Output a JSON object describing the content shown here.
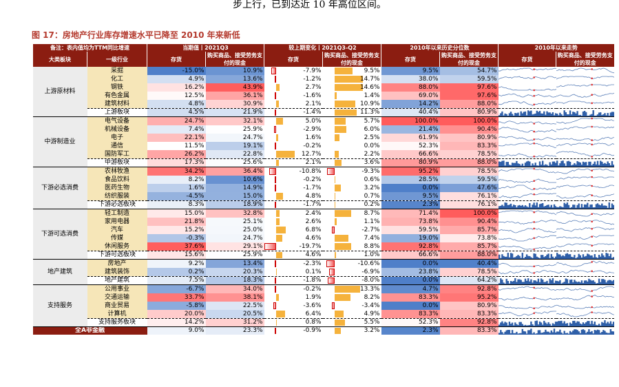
{
  "intro_text": "步上行，已到达近 10 年高位区间。",
  "figure_title": "图 17：房地产行业库存增速水平已降至 2010 年来新低",
  "header": {
    "note": "备注：表内值均为TTM同比增速",
    "current_group": "当期值丨2021Q3",
    "change_group": "较上期变化丨2021Q3-Q2",
    "pct_group": "2010年以来历史分位数",
    "trend_group": "2010年以来走势",
    "col_category": "大类板块",
    "col_industry": "一级行业",
    "col_inventory": "存货",
    "col_cash": "购买商品、接受劳务支付的现金"
  },
  "colors": {
    "header_bg": "#8b1d11",
    "red": "#f25c5c",
    "blue": "#4f7fc9",
    "gold": "#f5b23c",
    "line": "#5a7fb8"
  },
  "groups": [
    {
      "name": "上游原材料",
      "rows": [
        {
          "ind": "采掘",
          "inv": "-15.0%",
          "cash": "10.9%",
          "dinv": "-7.9%",
          "dcash": "9.5%",
          "pinv": "9.5%",
          "pcash": "54.7%"
        },
        {
          "ind": "化工",
          "inv": "4.9%",
          "cash": "13.6%",
          "dinv": "-1.2%",
          "dcash": "14.7%",
          "pinv": "38.0%",
          "pcash": "59.5%"
        },
        {
          "ind": "钢铁",
          "inv": "16.2%",
          "cash": "43.9%",
          "dinv": "2.7%",
          "dcash": "14.6%",
          "pinv": "88.0%",
          "pcash": "97.6%"
        },
        {
          "ind": "有色金属",
          "inv": "12.5%",
          "cash": "36.1%",
          "dinv": "-1.6%",
          "dcash": "1.4%",
          "pinv": "69.0%",
          "pcash": "97.6%"
        },
        {
          "ind": "建筑材料",
          "inv": "4.8%",
          "cash": "30.9%",
          "dinv": "2.1%",
          "dcash": "10.9%",
          "pinv": "14.2%",
          "pcash": "88.0%"
        }
      ],
      "sub": {
        "ind": "上游板块",
        "inv": "4.5%",
        "cash": "21.9%",
        "dinv": "-1.4%",
        "dcash": "11.3%",
        "pinv": "40.4%",
        "pcash": "80.9%"
      }
    },
    {
      "name": "中游制造业",
      "rows": [
        {
          "ind": "电气设备",
          "inv": "24.7%",
          "cash": "32.1%",
          "dinv": "5.0%",
          "dcash": "5.7%",
          "pinv": "100.0%",
          "pcash": "100.0%"
        },
        {
          "ind": "机械设备",
          "inv": "7.4%",
          "cash": "25.9%",
          "dinv": "-2.9%",
          "dcash": "6.0%",
          "pinv": "21.4%",
          "pcash": "90.4%"
        },
        {
          "ind": "电子",
          "inv": "22.1%",
          "cash": "24.7%",
          "dinv": "1.6%",
          "dcash": "2.5%",
          "pinv": "61.9%",
          "pcash": "80.9%"
        },
        {
          "ind": "通信",
          "inv": "11.5%",
          "cash": "19.1%",
          "dinv": "-0.2%",
          "dcash": "0.0%",
          "pinv": "52.3%",
          "pcash": "83.3%"
        },
        {
          "ind": "国防军工",
          "inv": "26.2%",
          "cash": "22.8%",
          "dinv": "12.7%",
          "dcash": "2.2%",
          "pinv": "66.6%",
          "pcash": "78.5%"
        }
      ],
      "sub": {
        "ind": "中游板块",
        "inv": "17.3%",
        "cash": "25.6%",
        "dinv": "2.1%",
        "dcash": "3.6%",
        "pinv": "80.9%",
        "pcash": "88.0%"
      }
    },
    {
      "name": "下游必选消费",
      "rows": [
        {
          "ind": "农林牧渔",
          "inv": "34.2%",
          "cash": "36.4%",
          "dinv": "-10.8%",
          "dcash": "-9.3%",
          "pinv": "95.2%",
          "pcash": "78.5%"
        },
        {
          "ind": "食品饮料",
          "inv": "8.2%",
          "cash": "10.6%",
          "dinv": "-0.2%",
          "dcash": "0.6%",
          "pinv": "28.5%",
          "pcash": "59.5%"
        },
        {
          "ind": "医药生物",
          "inv": "1.6%",
          "cash": "14.9%",
          "dinv": "-1.7%",
          "dcash": "3.2%",
          "pinv": "0.0%",
          "pcash": "47.6%"
        },
        {
          "ind": "纺织服装",
          "inv": "-4.5%",
          "cash": "15.0%",
          "dinv": "4.8%",
          "dcash": "0.7%",
          "pinv": "9.5%",
          "pcash": "76.1%"
        }
      ],
      "sub": {
        "ind": "下游必选板块",
        "inv": "8.3%",
        "cash": "18.9%",
        "dinv": "-1.7%",
        "dcash": "0.2%",
        "pinv": "2.3%",
        "pcash": "76.1%"
      }
    },
    {
      "name": "下游可选消费",
      "rows": [
        {
          "ind": "轻工制造",
          "inv": "15.0%",
          "cash": "32.8%",
          "dinv": "2.4%",
          "dcash": "8.7%",
          "pinv": "71.4%",
          "pcash": "100.0%"
        },
        {
          "ind": "家用电器",
          "inv": "21.8%",
          "cash": "25.1%",
          "dinv": "2.6%",
          "dcash": "1.1%",
          "pinv": "73.8%",
          "pcash": "90.4%"
        },
        {
          "ind": "汽车",
          "inv": "15.2%",
          "cash": "25.0%",
          "dinv": "6.8%",
          "dcash": "-2.7%",
          "pinv": "59.5%",
          "pcash": "85.7%"
        },
        {
          "ind": "传媒",
          "inv": "-0.3%",
          "cash": "24.7%",
          "dinv": "4.6%",
          "dcash": "7.4%",
          "pinv": "19.0%",
          "pcash": "73.8%"
        },
        {
          "ind": "休闲服务",
          "inv": "37.6%",
          "cash": "29.1%",
          "dinv": "-19.7%",
          "dcash": "8.8%",
          "pinv": "92.8%",
          "pcash": "85.7%"
        }
      ],
      "sub": {
        "ind": "下游可选板块",
        "inv": "15.6%",
        "cash": "25.9%",
        "dinv": "4.6%",
        "dcash": "1.0%",
        "pinv": "66.6%",
        "pcash": "88.0%"
      }
    },
    {
      "name": "地产建筑",
      "rows": [
        {
          "ind": "房地产",
          "inv": "9.2%",
          "cash": "13.4%",
          "dinv": "-2.3%",
          "dcash": "-10.6%",
          "pinv": "0.0%",
          "pcash": "40.4%"
        },
        {
          "ind": "建筑装饰",
          "inv": "0.2%",
          "cash": "20.3%",
          "dinv": "0.1%",
          "dcash": "-6.9%",
          "pinv": "23.8%",
          "pcash": "78.5%"
        }
      ],
      "sub": {
        "ind": "地产建筑",
        "inv": "7.5%",
        "cash": "18.3%",
        "dinv": "-1.8%",
        "dcash": "-8.0%",
        "pinv": "0.0%",
        "pcash": "64.2%"
      }
    },
    {
      "name": "支持服务",
      "rows": [
        {
          "ind": "公用事业",
          "inv": "-6.7%",
          "cash": "34.0%",
          "dinv": "-0.2%",
          "dcash": "13.3%",
          "pinv": "4.7%",
          "pcash": "92.8%"
        },
        {
          "ind": "交通运输",
          "inv": "33.7%",
          "cash": "38.1%",
          "dinv": "1.9%",
          "dcash": "8.2%",
          "pinv": "83.3%",
          "pcash": "95.2%"
        },
        {
          "ind": "商业贸易",
          "inv": "-5.8%",
          "cash": "22.5%",
          "dinv": "-3.6%",
          "dcash": "-3.4%",
          "pinv": "0.0%",
          "pcash": "80.9%"
        },
        {
          "ind": "计算机",
          "inv": "20.0%",
          "cash": "20.5%",
          "dinv": "6.4%",
          "dcash": "4.9%",
          "pinv": "83.3%",
          "pcash": "83.3%"
        }
      ],
      "sub": {
        "ind": "支持服务板块",
        "inv": "14.2%",
        "cash": "31.2%",
        "dinv": "0.8%",
        "dcash": "5.5%",
        "pinv": "52.3%",
        "pcash": "92.8%"
      }
    }
  ],
  "total": {
    "ind": "全A非金融",
    "inv": "9.0%",
    "cash": "23.3%",
    "dinv": "-0.9%",
    "dcash": "3.2%",
    "pinv": "2.3%",
    "pcash": "83.3%"
  }
}
